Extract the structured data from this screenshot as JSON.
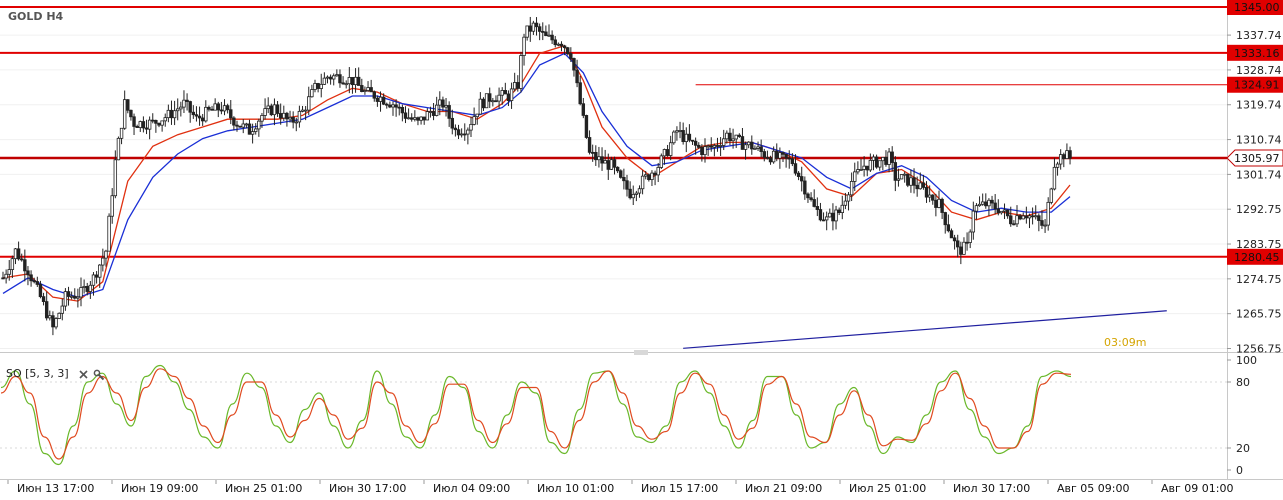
{
  "symbol_label": "GOLD H4",
  "timer_label": "03:09m",
  "indicator": {
    "label": "SO [5, 3, 3]",
    "close_icon": "close-icon",
    "settings_icon": "wrench-icon",
    "levels": [
      "100",
      "80",
      "20",
      "0"
    ]
  },
  "chart_data": [
    {
      "type": "candlestick",
      "title": "GOLD H4",
      "x_tick_labels": [
        "Июн 13 17:00",
        "Июн 19 09:00",
        "Июн 25 01:00",
        "Июн 30 17:00",
        "Июл 04 09:00",
        "Июл 10 01:00",
        "Июл 15 17:00",
        "Июл 21 09:00",
        "Июл 25 01:00",
        "Июл 30 17:00",
        "Авг 05 09:00",
        "Авг 09 01:00"
      ],
      "y_tick_labels": [
        "1337.74",
        "1328.74",
        "1319.74",
        "1310.74",
        "1301.74",
        "1292.75",
        "1283.75",
        "1274.75",
        "1265.75",
        "1256.75"
      ],
      "ylim": [
        1255.5,
        1347
      ],
      "horizontal_levels": [
        {
          "value": 1345.0,
          "label": "1345.00",
          "color": "#e00000"
        },
        {
          "value": 1333.16,
          "label": "1333.16",
          "color": "#e00000"
        },
        {
          "value": 1324.91,
          "label": "1324.91",
          "color": "#e00000"
        },
        {
          "value": 1305.97,
          "label": "1305.97",
          "color": "#c00000",
          "current_price": true
        },
        {
          "value": 1280.45,
          "label": "1280.45",
          "color": "#e00000"
        }
      ],
      "trendline": {
        "color": "#2020a0",
        "from": {
          "bar": 218,
          "value": 1256.8
        },
        "to": {
          "bar": 373,
          "value": 1266.5
        }
      },
      "moving_averages": [
        {
          "color": "#e03010"
        },
        {
          "color": "#1a2fd6"
        }
      ],
      "close_path": [
        [
          0,
          1275
        ],
        [
          4,
          1282
        ],
        [
          8,
          1277
        ],
        [
          12,
          1270
        ],
        [
          16,
          1262
        ],
        [
          20,
          1270
        ],
        [
          25,
          1271
        ],
        [
          29,
          1275
        ],
        [
          33,
          1282
        ],
        [
          36,
          1305
        ],
        [
          39,
          1320
        ],
        [
          42,
          1315
        ],
        [
          48,
          1315
        ],
        [
          53,
          1317
        ],
        [
          58,
          1320
        ],
        [
          62,
          1316
        ],
        [
          66,
          1318
        ],
        [
          70,
          1319
        ],
        [
          75,
          1315
        ],
        [
          79,
          1313
        ],
        [
          83,
          1317
        ],
        [
          87,
          1319
        ],
        [
          92,
          1315
        ],
        [
          96,
          1318
        ],
        [
          100,
          1324
        ],
        [
          104,
          1327
        ],
        [
          108,
          1327
        ],
        [
          112,
          1326
        ],
        [
          116,
          1323
        ],
        [
          120,
          1322
        ],
        [
          125,
          1320
        ],
        [
          129,
          1317
        ],
        [
          133,
          1315
        ],
        [
          137,
          1318
        ],
        [
          141,
          1320
        ],
        [
          145,
          1313
        ],
        [
          149,
          1314
        ],
        [
          153,
          1320
        ],
        [
          157,
          1322
        ],
        [
          162,
          1322
        ],
        [
          165,
          1325
        ],
        [
          167,
          1338
        ],
        [
          170,
          1340
        ],
        [
          174,
          1337
        ],
        [
          179,
          1336
        ],
        [
          182,
          1333
        ],
        [
          185,
          1320
        ],
        [
          188,
          1307
        ],
        [
          192,
          1305
        ],
        [
          195,
          1304
        ],
        [
          198,
          1300
        ],
        [
          201,
          1297
        ],
        [
          205,
          1300
        ],
        [
          210,
          1304
        ],
        [
          213,
          1308
        ],
        [
          216,
          1313
        ],
        [
          220,
          1310
        ],
        [
          224,
          1308
        ],
        [
          228,
          1309
        ],
        [
          232,
          1312
        ],
        [
          236,
          1310
        ],
        [
          240,
          1309
        ],
        [
          244,
          1307
        ],
        [
          248,
          1306
        ],
        [
          253,
          1305
        ],
        [
          256,
          1300
        ],
        [
          260,
          1293
        ],
        [
          264,
          1290
        ],
        [
          268,
          1292
        ],
        [
          272,
          1300
        ],
        [
          276,
          1304
        ],
        [
          280,
          1305
        ],
        [
          284,
          1306
        ],
        [
          286,
          1301
        ],
        [
          291,
          1300
        ],
        [
          296,
          1297
        ],
        [
          300,
          1294
        ],
        [
          303,
          1288
        ],
        [
          306,
          1282
        ],
        [
          309,
          1283
        ],
        [
          311,
          1293
        ],
        [
          315,
          1294
        ],
        [
          319,
          1293
        ],
        [
          323,
          1290
        ],
        [
          327,
          1292
        ],
        [
          331,
          1290
        ],
        [
          334,
          1288
        ],
        [
          337,
          1305
        ],
        [
          340,
          1307
        ],
        [
          342,
          1306
        ]
      ],
      "ma_fast_path": [
        [
          0,
          1275
        ],
        [
          8,
          1276
        ],
        [
          16,
          1270
        ],
        [
          24,
          1269
        ],
        [
          32,
          1274
        ],
        [
          40,
          1300
        ],
        [
          48,
          1309
        ],
        [
          56,
          1312
        ],
        [
          64,
          1314
        ],
        [
          72,
          1316
        ],
        [
          80,
          1316
        ],
        [
          88,
          1316
        ],
        [
          96,
          1317
        ],
        [
          104,
          1321
        ],
        [
          112,
          1324
        ],
        [
          120,
          1323
        ],
        [
          128,
          1320
        ],
        [
          136,
          1318
        ],
        [
          144,
          1318
        ],
        [
          152,
          1316
        ],
        [
          160,
          1320
        ],
        [
          166,
          1325
        ],
        [
          172,
          1333
        ],
        [
          180,
          1335
        ],
        [
          186,
          1326
        ],
        [
          192,
          1314
        ],
        [
          200,
          1306
        ],
        [
          208,
          1301
        ],
        [
          216,
          1305
        ],
        [
          224,
          1309
        ],
        [
          232,
          1310
        ],
        [
          240,
          1310
        ],
        [
          248,
          1308
        ],
        [
          256,
          1305
        ],
        [
          264,
          1298
        ],
        [
          272,
          1296
        ],
        [
          280,
          1302
        ],
        [
          288,
          1303
        ],
        [
          296,
          1299
        ],
        [
          304,
          1292
        ],
        [
          312,
          1290
        ],
        [
          320,
          1292
        ],
        [
          328,
          1291
        ],
        [
          336,
          1293
        ],
        [
          342,
          1299
        ]
      ],
      "ma_slow_path": [
        [
          0,
          1271
        ],
        [
          8,
          1275
        ],
        [
          16,
          1272
        ],
        [
          24,
          1270
        ],
        [
          32,
          1272
        ],
        [
          40,
          1290
        ],
        [
          48,
          1301
        ],
        [
          56,
          1307
        ],
        [
          64,
          1311
        ],
        [
          72,
          1313
        ],
        [
          80,
          1314
        ],
        [
          88,
          1315
        ],
        [
          96,
          1316
        ],
        [
          104,
          1319
        ],
        [
          112,
          1322
        ],
        [
          120,
          1322
        ],
        [
          128,
          1320
        ],
        [
          136,
          1319
        ],
        [
          144,
          1318
        ],
        [
          152,
          1317
        ],
        [
          160,
          1319
        ],
        [
          166,
          1323
        ],
        [
          172,
          1330
        ],
        [
          180,
          1333
        ],
        [
          186,
          1328
        ],
        [
          192,
          1318
        ],
        [
          200,
          1309
        ],
        [
          208,
          1304
        ],
        [
          216,
          1305
        ],
        [
          224,
          1308
        ],
        [
          232,
          1309
        ],
        [
          240,
          1310
        ],
        [
          248,
          1308
        ],
        [
          256,
          1306
        ],
        [
          264,
          1301
        ],
        [
          272,
          1298
        ],
        [
          280,
          1302
        ],
        [
          288,
          1304
        ],
        [
          296,
          1301
        ],
        [
          304,
          1295
        ],
        [
          312,
          1292
        ],
        [
          320,
          1293
        ],
        [
          328,
          1292
        ],
        [
          336,
          1292
        ],
        [
          342,
          1296
        ]
      ]
    },
    {
      "type": "line",
      "title": "SO [5, 3, 3]",
      "ylim": [
        -5,
        105
      ],
      "y_tick_labels": [
        "100",
        "80",
        "20",
        "0"
      ],
      "levels": [
        80,
        20
      ],
      "series": [
        {
          "color": "#6ab82a",
          "values": [
            75,
            90,
            60,
            15,
            5,
            40,
            80,
            88,
            60,
            40,
            85,
            95,
            80,
            55,
            30,
            20,
            60,
            88,
            75,
            40,
            25,
            55,
            70,
            40,
            20,
            45,
            90,
            60,
            30,
            20,
            50,
            85,
            75,
            35,
            20,
            50,
            80,
            70,
            25,
            15,
            55,
            88,
            90,
            60,
            30,
            25,
            40,
            80,
            90,
            70,
            40,
            20,
            45,
            85,
            85,
            50,
            20,
            25,
            60,
            75,
            40,
            15,
            30,
            25,
            50,
            80,
            90,
            55,
            30,
            15,
            20,
            40,
            85,
            90,
            85
          ]
        },
        {
          "color": "#e04a20",
          "values": [
            70,
            85,
            70,
            30,
            10,
            30,
            70,
            85,
            70,
            45,
            75,
            92,
            85,
            65,
            40,
            25,
            50,
            80,
            80,
            50,
            30,
            45,
            65,
            50,
            28,
            38,
            80,
            70,
            40,
            25,
            42,
            78,
            78,
            45,
            25,
            42,
            75,
            75,
            35,
            20,
            45,
            80,
            90,
            70,
            40,
            28,
            35,
            70,
            88,
            78,
            50,
            28,
            38,
            78,
            85,
            60,
            30,
            25,
            50,
            72,
            50,
            22,
            28,
            27,
            42,
            72,
            88,
            65,
            40,
            20,
            20,
            35,
            78,
            88,
            87
          ]
        }
      ]
    }
  ]
}
